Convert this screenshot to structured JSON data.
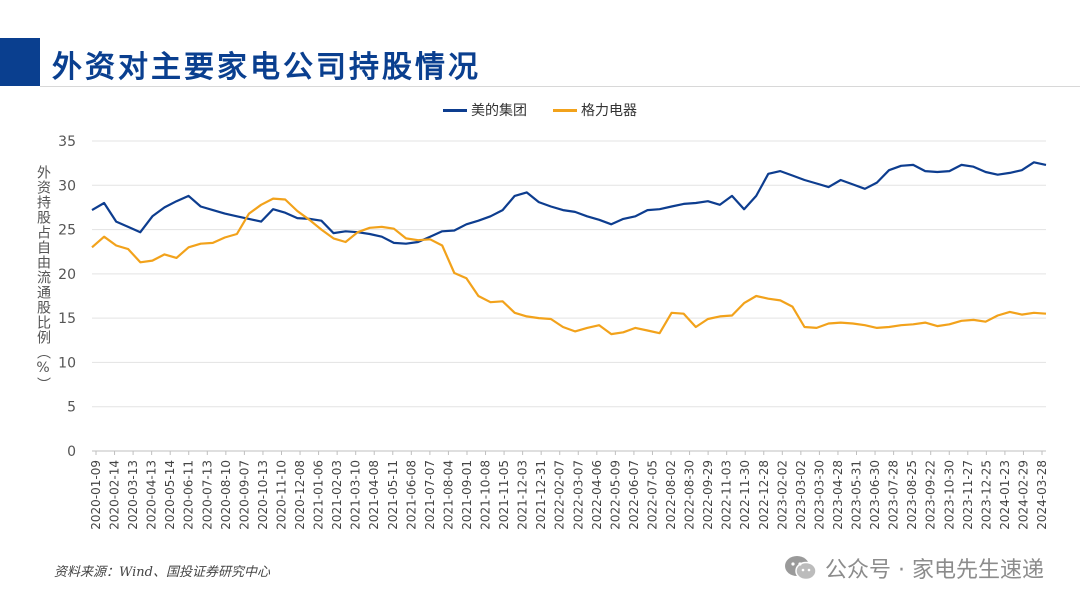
{
  "page": {
    "title": "外资对主要家电公司持股情况",
    "source": "资料来源：Wind、国投证券研究中心",
    "watermark": "公众号 · 家电先生速递"
  },
  "chart_data": {
    "type": "line",
    "title": "",
    "ylabel": "外资持股占自由流通股比例（%）",
    "xlabel": "",
    "ylim": [
      0,
      35
    ],
    "yticks": [
      0,
      5,
      10,
      15,
      20,
      25,
      30,
      35
    ],
    "grid": true,
    "legend_position": "top-center",
    "x_tick_labels": [
      "2020-01-09",
      "2020-02-14",
      "2020-03-13",
      "2020-04-13",
      "2020-05-14",
      "2020-06-11",
      "2020-07-13",
      "2020-08-10",
      "2020-09-07",
      "2020-10-13",
      "2020-11-10",
      "2020-12-08",
      "2021-01-06",
      "2021-02-03",
      "2021-03-10",
      "2021-04-08",
      "2021-05-11",
      "2021-06-08",
      "2021-07-07",
      "2021-08-04",
      "2021-09-01",
      "2021-10-08",
      "2021-11-05",
      "2021-12-03",
      "2021-12-31",
      "2022-02-07",
      "2022-03-07",
      "2022-04-06",
      "2022-05-09",
      "2022-06-07",
      "2022-07-05",
      "2022-08-02",
      "2022-08-30",
      "2022-09-29",
      "2022-11-03",
      "2022-11-30",
      "2022-12-28",
      "2023-02-02",
      "2023-03-02",
      "2023-03-30",
      "2023-04-28",
      "2023-05-31",
      "2023-06-30",
      "2023-07-28",
      "2023-08-25",
      "2023-09-22",
      "2023-10-30",
      "2023-11-27",
      "2023-12-25",
      "2024-01-23",
      "2024-02-29",
      "2024-03-28"
    ],
    "series": [
      {
        "name": "美的集团",
        "color": "#0d3d8f",
        "values": [
          27.2,
          28.0,
          25.9,
          25.3,
          24.7,
          26.5,
          27.5,
          28.2,
          28.8,
          27.6,
          27.2,
          26.8,
          26.5,
          26.2,
          25.9,
          27.3,
          26.9,
          26.3,
          26.2,
          26.0,
          24.6,
          24.8,
          24.7,
          24.5,
          24.2,
          23.5,
          23.4,
          23.6,
          24.2,
          24.8,
          24.9,
          25.6,
          26.0,
          26.5,
          27.2,
          28.8,
          29.2,
          28.1,
          27.6,
          27.2,
          27.0,
          26.5,
          26.1,
          25.6,
          26.2,
          26.5,
          27.2,
          27.3,
          27.6,
          27.9,
          28.0,
          28.2,
          27.8,
          28.8,
          27.3,
          28.8,
          31.3,
          31.6,
          31.1,
          30.6,
          30.2,
          29.8,
          30.6,
          30.1,
          29.6,
          30.3,
          31.7,
          32.2,
          32.3,
          31.6,
          31.5,
          31.6,
          32.3,
          32.1,
          31.5,
          31.2,
          31.4,
          31.7,
          32.6,
          32.3
        ]
      },
      {
        "name": "格力电器",
        "color": "#f2a21b",
        "values": [
          23.0,
          24.2,
          23.2,
          22.8,
          21.3,
          21.5,
          22.2,
          21.8,
          23.0,
          23.4,
          23.5,
          24.1,
          24.5,
          26.8,
          27.8,
          28.5,
          28.4,
          27.1,
          26.1,
          25.0,
          24.0,
          23.6,
          24.7,
          25.2,
          25.3,
          25.1,
          24.0,
          23.8,
          23.9,
          23.2,
          20.1,
          19.5,
          17.5,
          16.8,
          16.9,
          15.6,
          15.2,
          15.0,
          14.9,
          14.0,
          13.5,
          13.9,
          14.2,
          13.2,
          13.4,
          13.9,
          13.6,
          13.3,
          15.6,
          15.5,
          14.0,
          14.9,
          15.2,
          15.3,
          16.7,
          17.5,
          17.2,
          17.0,
          16.3,
          14.0,
          13.9,
          14.4,
          14.5,
          14.4,
          14.2,
          13.9,
          14.0,
          14.2,
          14.3,
          14.5,
          14.1,
          14.3,
          14.7,
          14.8,
          14.6,
          15.3,
          15.7,
          15.4,
          15.6,
          15.5
        ]
      }
    ]
  },
  "icons": {
    "watermark_icon": "wechat-icon"
  }
}
